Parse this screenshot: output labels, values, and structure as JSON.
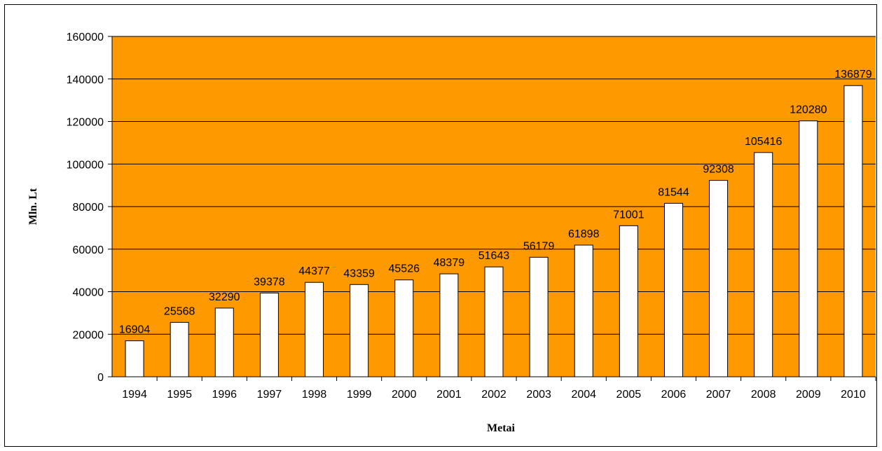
{
  "chart_data": {
    "type": "bar",
    "title": "",
    "xlabel": "Metai",
    "ylabel": "Mln. Lt",
    "categories": [
      "1994",
      "1995",
      "1996",
      "1997",
      "1998",
      "1999",
      "2000",
      "2001",
      "2002",
      "2003",
      "2004",
      "2005",
      "2006",
      "2007",
      "2008",
      "2009",
      "2010"
    ],
    "values": [
      16904,
      25568,
      32290,
      39378,
      44377,
      43359,
      45526,
      48379,
      51643,
      56179,
      61898,
      71001,
      81544,
      92308,
      105416,
      120280,
      136879
    ],
    "ylim": [
      0,
      160000
    ],
    "yticks": [
      0,
      20000,
      40000,
      60000,
      80000,
      100000,
      120000,
      140000,
      160000
    ],
    "grid": true,
    "legend": "none",
    "colors": {
      "plot_background": "#FF9900",
      "bar_fill": "#FFFFFF",
      "bar_stroke": "#000000",
      "gridline": "#000000"
    }
  }
}
